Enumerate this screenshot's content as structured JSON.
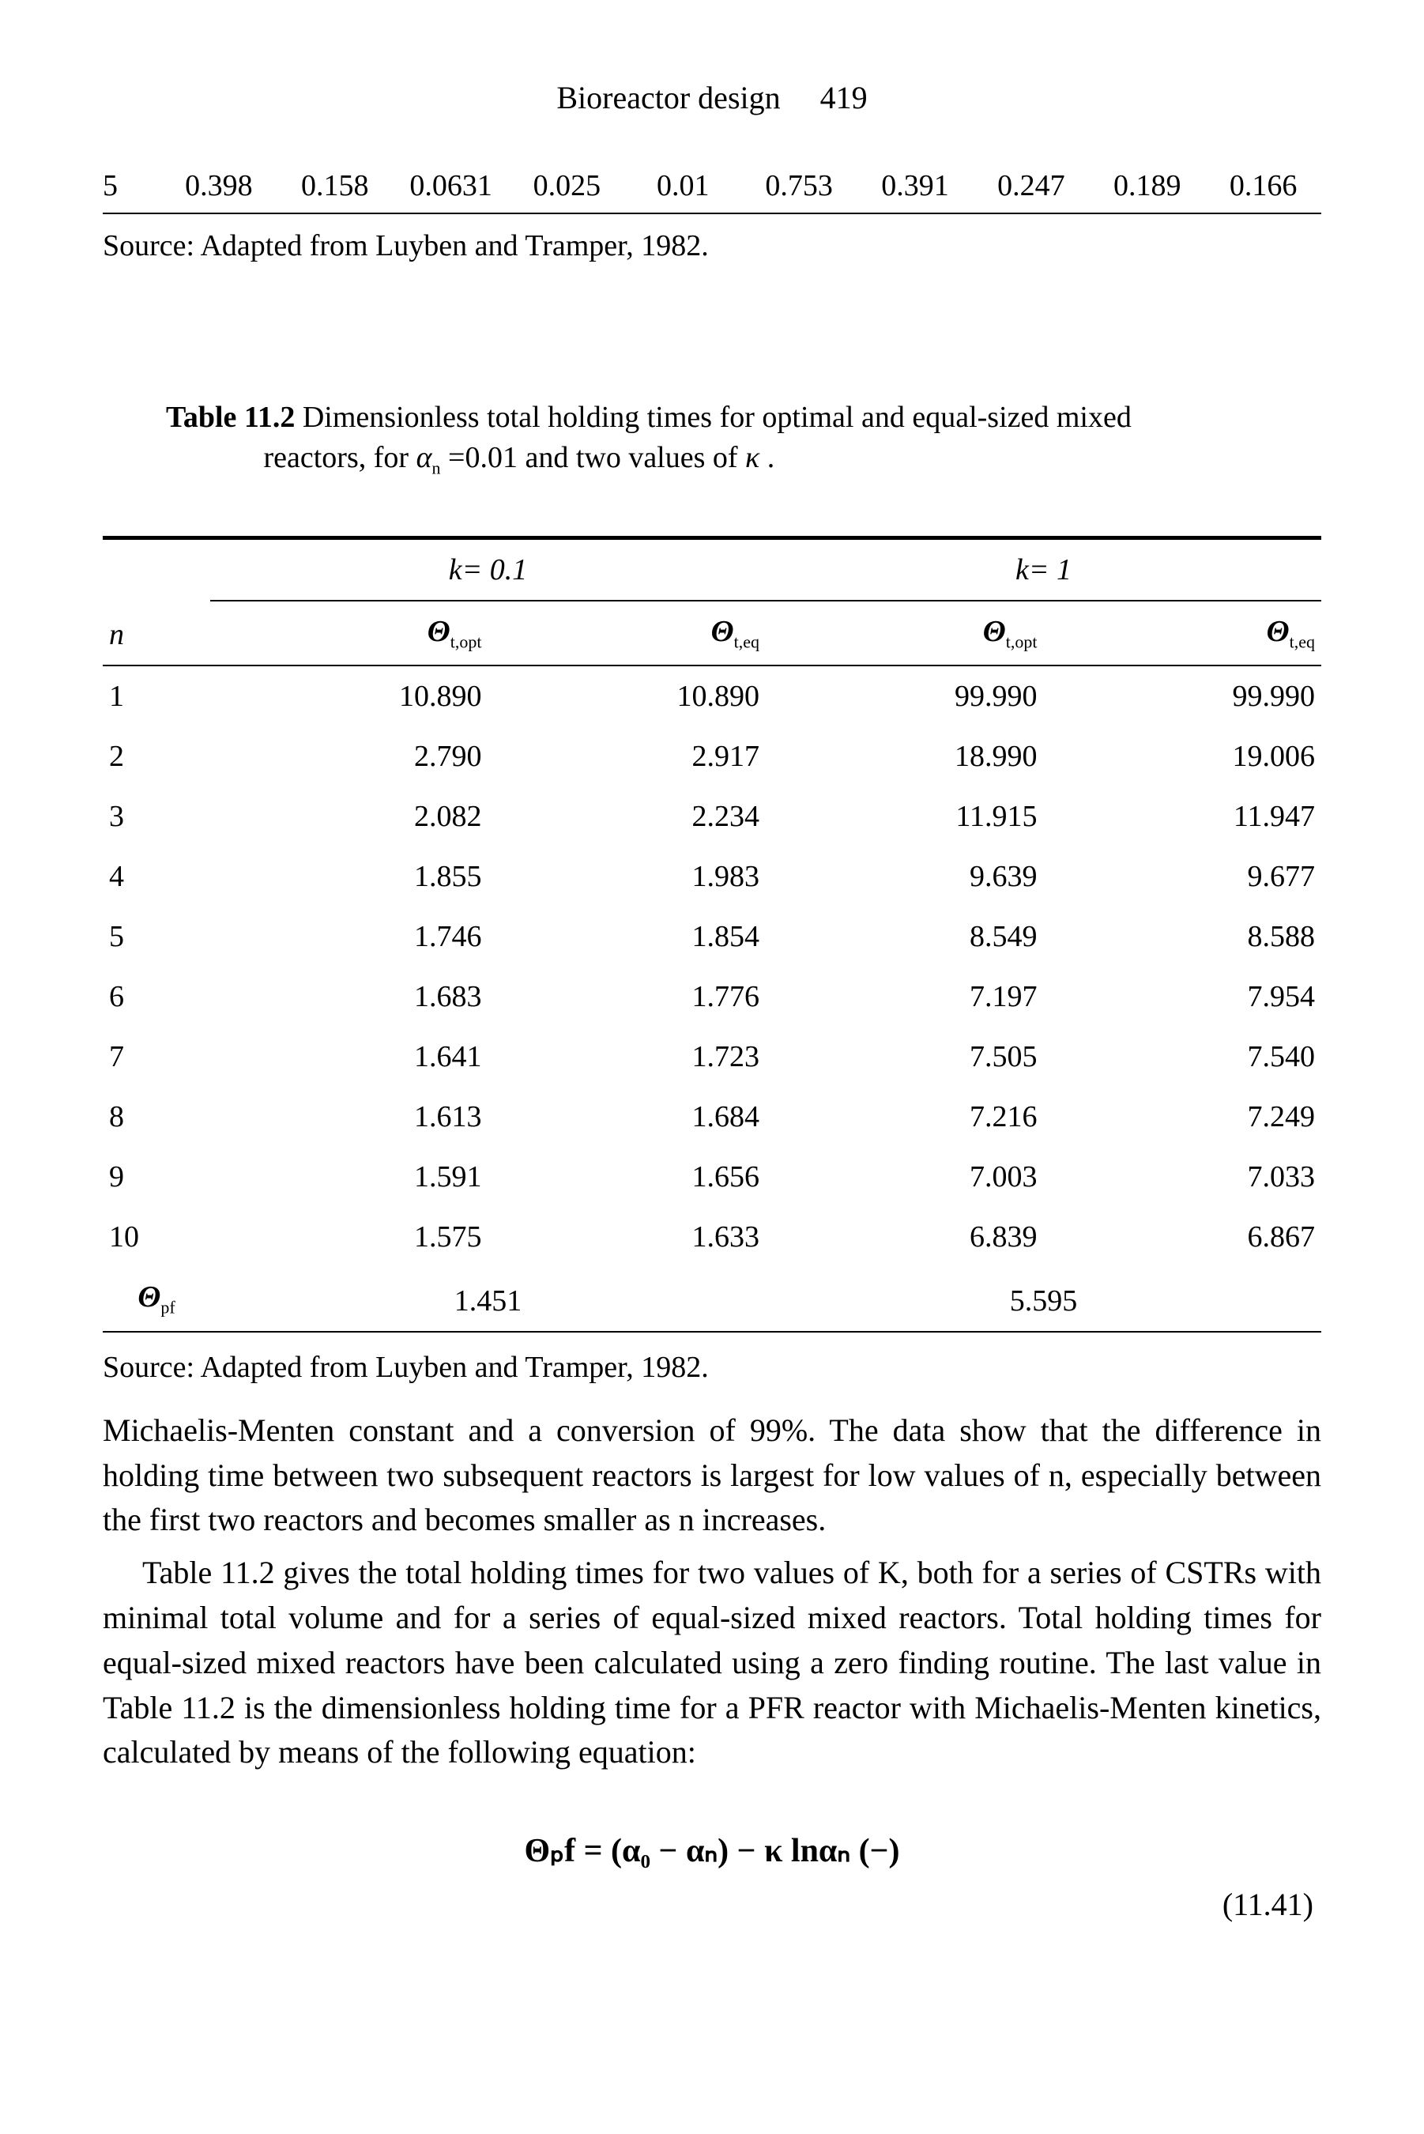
{
  "running_head": {
    "title": "Bioreactor design",
    "page": "419"
  },
  "top_row": {
    "cells": [
      "5",
      "0.398",
      "0.158",
      "0.0631",
      "0.025",
      "0.01",
      "0.753",
      "0.391",
      "0.247",
      "0.189",
      "0.166"
    ]
  },
  "source_note": "Source: Adapted from Luyben and Tramper, 1982.",
  "table112": {
    "caption_lead": "Table 11.2",
    "caption_body": " Dimensionless total holding times for optimal and equal-sized mixed",
    "caption_line2_pre": "reactors, for ",
    "caption_alpha": "α",
    "caption_alpha_sub": "n",
    "caption_alpha_rhs": "=0.01 and two values of ",
    "caption_kappa": "κ",
    "caption_tail": ".",
    "n_header": "n",
    "k_headers": [
      "k= 0.1",
      "k= 1"
    ],
    "col_syms": {
      "theta": "Θ",
      "sub_opt": "t,opt",
      "sub_eq": "t,eq"
    },
    "rows": [
      {
        "n": "1",
        "a": "10.890",
        "b": "10.890",
        "c": "99.990",
        "d": "99.990"
      },
      {
        "n": "2",
        "a": "2.790",
        "b": "2.917",
        "c": "18.990",
        "d": "19.006"
      },
      {
        "n": "3",
        "a": "2.082",
        "b": "2.234",
        "c": "11.915",
        "d": "11.947"
      },
      {
        "n": "4",
        "a": "1.855",
        "b": "1.983",
        "c": "9.639",
        "d": "9.677"
      },
      {
        "n": "5",
        "a": "1.746",
        "b": "1.854",
        "c": "8.549",
        "d": "8.588"
      },
      {
        "n": "6",
        "a": "1.683",
        "b": "1.776",
        "c": "7.197",
        "d": "7.954"
      },
      {
        "n": "7",
        "a": "1.641",
        "b": "1.723",
        "c": "7.505",
        "d": "7.540"
      },
      {
        "n": "8",
        "a": "1.613",
        "b": "1.684",
        "c": "7.216",
        "d": "7.249"
      },
      {
        "n": "9",
        "a": "1.591",
        "b": "1.656",
        "c": "7.003",
        "d": "7.033"
      },
      {
        "n": "10",
        "a": "1.575",
        "b": "1.633",
        "c": "6.839",
        "d": "6.867"
      }
    ],
    "pf_row": {
      "sym": "Θ",
      "sub": "pf",
      "v1": "1.451",
      "v2": "5.595"
    },
    "source": "Source: Adapted from Luyben and Tramper, 1982."
  },
  "body": {
    "p1": "Michaelis-Menten constant and a conversion of 99%. The data show that the difference in holding time between two subsequent reactors is largest for low values of n, especially between the first two reactors and becomes smaller as n increases.",
    "p2": "Table 11.2 gives the total holding times for two values of K, both for a series of CSTRs with minimal total volume and for a series of equal-sized mixed reactors. Total holding times for equal-sized mixed reactors have been calculated using a zero finding routine. The last value in Table 11.2 is the dimensionless holding time for a PFR reactor with Michaelis-Menten kinetics, calculated by means of the following equation:"
  },
  "equation": {
    "text": "Θₚf = (α₀ − αₙ) − κ lnαₙ   (−)",
    "number": "(11.41)"
  }
}
